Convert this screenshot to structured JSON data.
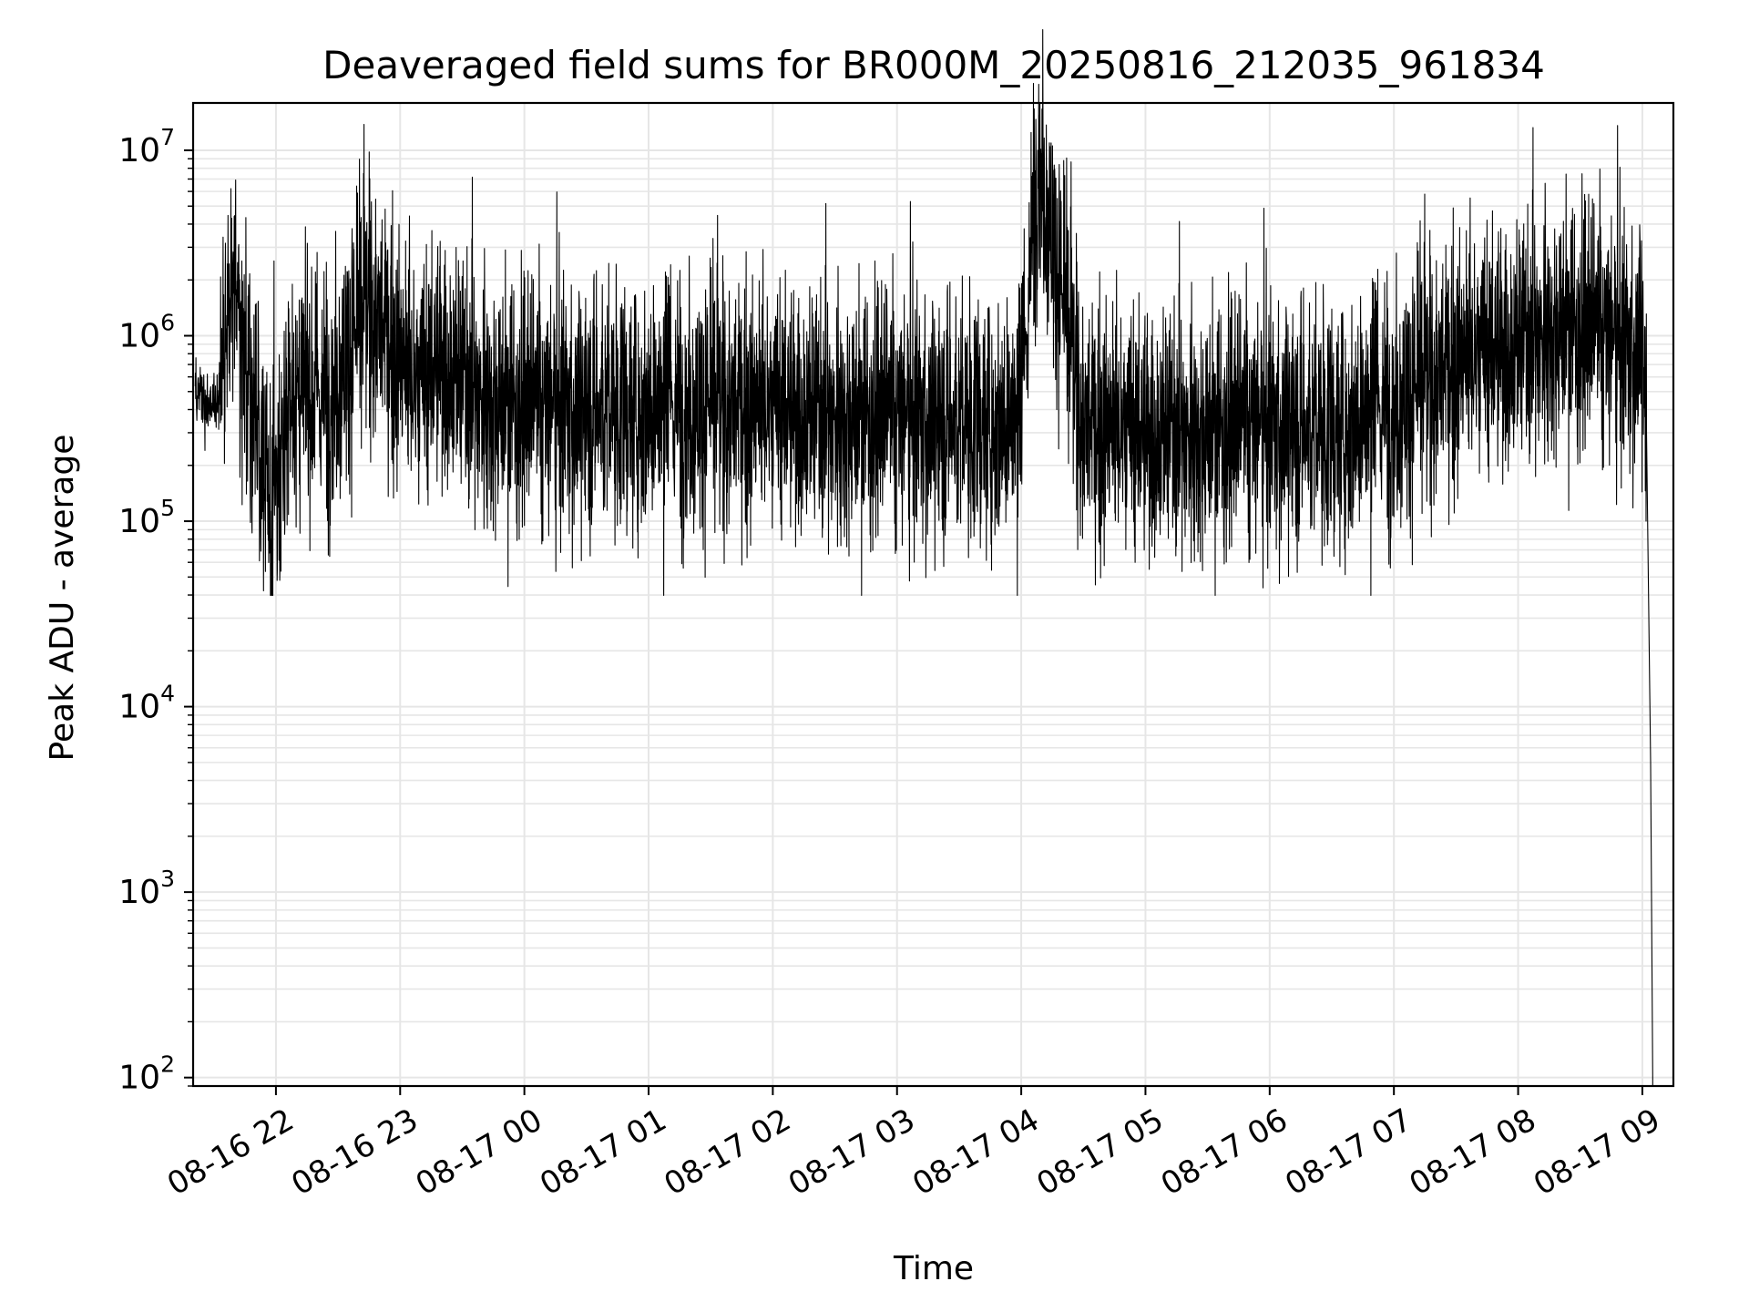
{
  "chart_data": {
    "type": "line",
    "title": "Deaveraged field sums for BR000M_20250816_212035_961834",
    "xlabel": "Time",
    "ylabel": "Peak ADU - average",
    "yscale": "log",
    "ylim": [
      90,
      18000000
    ],
    "xlim": [
      "2025-08-16 21:20",
      "2025-08-17 09:15"
    ],
    "grid": true,
    "line_color": "#000000",
    "grid_color": "#e6e6e6",
    "y_ticks": [
      {
        "value": 100,
        "base": "10",
        "exp": "2"
      },
      {
        "value": 1000,
        "base": "10",
        "exp": "3"
      },
      {
        "value": 10000,
        "base": "10",
        "exp": "4"
      },
      {
        "value": 100000,
        "base": "10",
        "exp": "5"
      },
      {
        "value": 1000000,
        "base": "10",
        "exp": "6"
      },
      {
        "value": 10000000,
        "base": "10",
        "exp": "7"
      }
    ],
    "x_ticks": [
      {
        "time": "2025-08-16 22:00",
        "label": "08-16 22"
      },
      {
        "time": "2025-08-16 23:00",
        "label": "08-16 23"
      },
      {
        "time": "2025-08-17 00:00",
        "label": "08-17 00"
      },
      {
        "time": "2025-08-17 01:00",
        "label": "08-17 01"
      },
      {
        "time": "2025-08-17 02:00",
        "label": "08-17 02"
      },
      {
        "time": "2025-08-17 03:00",
        "label": "08-17 03"
      },
      {
        "time": "2025-08-17 04:00",
        "label": "08-17 04"
      },
      {
        "time": "2025-08-17 05:00",
        "label": "08-17 05"
      },
      {
        "time": "2025-08-17 06:00",
        "label": "08-17 06"
      },
      {
        "time": "2025-08-17 07:00",
        "label": "08-17 07"
      },
      {
        "time": "2025-08-17 08:00",
        "label": "08-17 08"
      },
      {
        "time": "2025-08-17 09:00",
        "label": "08-17 09"
      }
    ],
    "series": [
      {
        "x": [
          "2025-08-16 21:21",
          "2025-08-16 21:27",
          "2025-08-16 21:33",
          "2025-08-16 21:39",
          "2025-08-16 21:45",
          "2025-08-16 21:51",
          "2025-08-16 21:58",
          "2025-08-16 22:05",
          "2025-08-16 22:15",
          "2025-08-16 22:25",
          "2025-08-16 22:35",
          "2025-08-16 22:45",
          "2025-08-16 22:55",
          "2025-08-16 23:08",
          "2025-08-16 23:20",
          "2025-08-16 23:40",
          "2025-08-17 00:00",
          "2025-08-17 00:30",
          "2025-08-17 01:00",
          "2025-08-17 01:30",
          "2025-08-17 02:00",
          "2025-08-17 02:30",
          "2025-08-17 03:00",
          "2025-08-17 03:30",
          "2025-08-17 04:00",
          "2025-08-17 04:08",
          "2025-08-17 04:30",
          "2025-08-17 05:00",
          "2025-08-17 05:30",
          "2025-08-17 06:00",
          "2025-08-17 06:30",
          "2025-08-17 07:00",
          "2025-08-17 07:30",
          "2025-08-17 08:00",
          "2025-08-17 08:20",
          "2025-08-17 08:40",
          "2025-08-17 08:55",
          "2025-08-17 09:00",
          "2025-08-17 09:02",
          "2025-08-17 09:04",
          "2025-08-17 09:05"
        ],
        "y": [
          500000,
          400000,
          450000,
          2300000,
          800000,
          300000,
          100000,
          400000,
          500000,
          450000,
          800000,
          1500000,
          900000,
          500000,
          700000,
          450000,
          400000,
          380000,
          400000,
          420000,
          380000,
          360000,
          350000,
          330000,
          350000,
          10000000,
          320000,
          280000,
          300000,
          320000,
          300000,
          420000,
          700000,
          850000,
          1100000,
          1000000,
          800000,
          900000,
          300000,
          5000,
          100
        ]
      }
    ]
  }
}
